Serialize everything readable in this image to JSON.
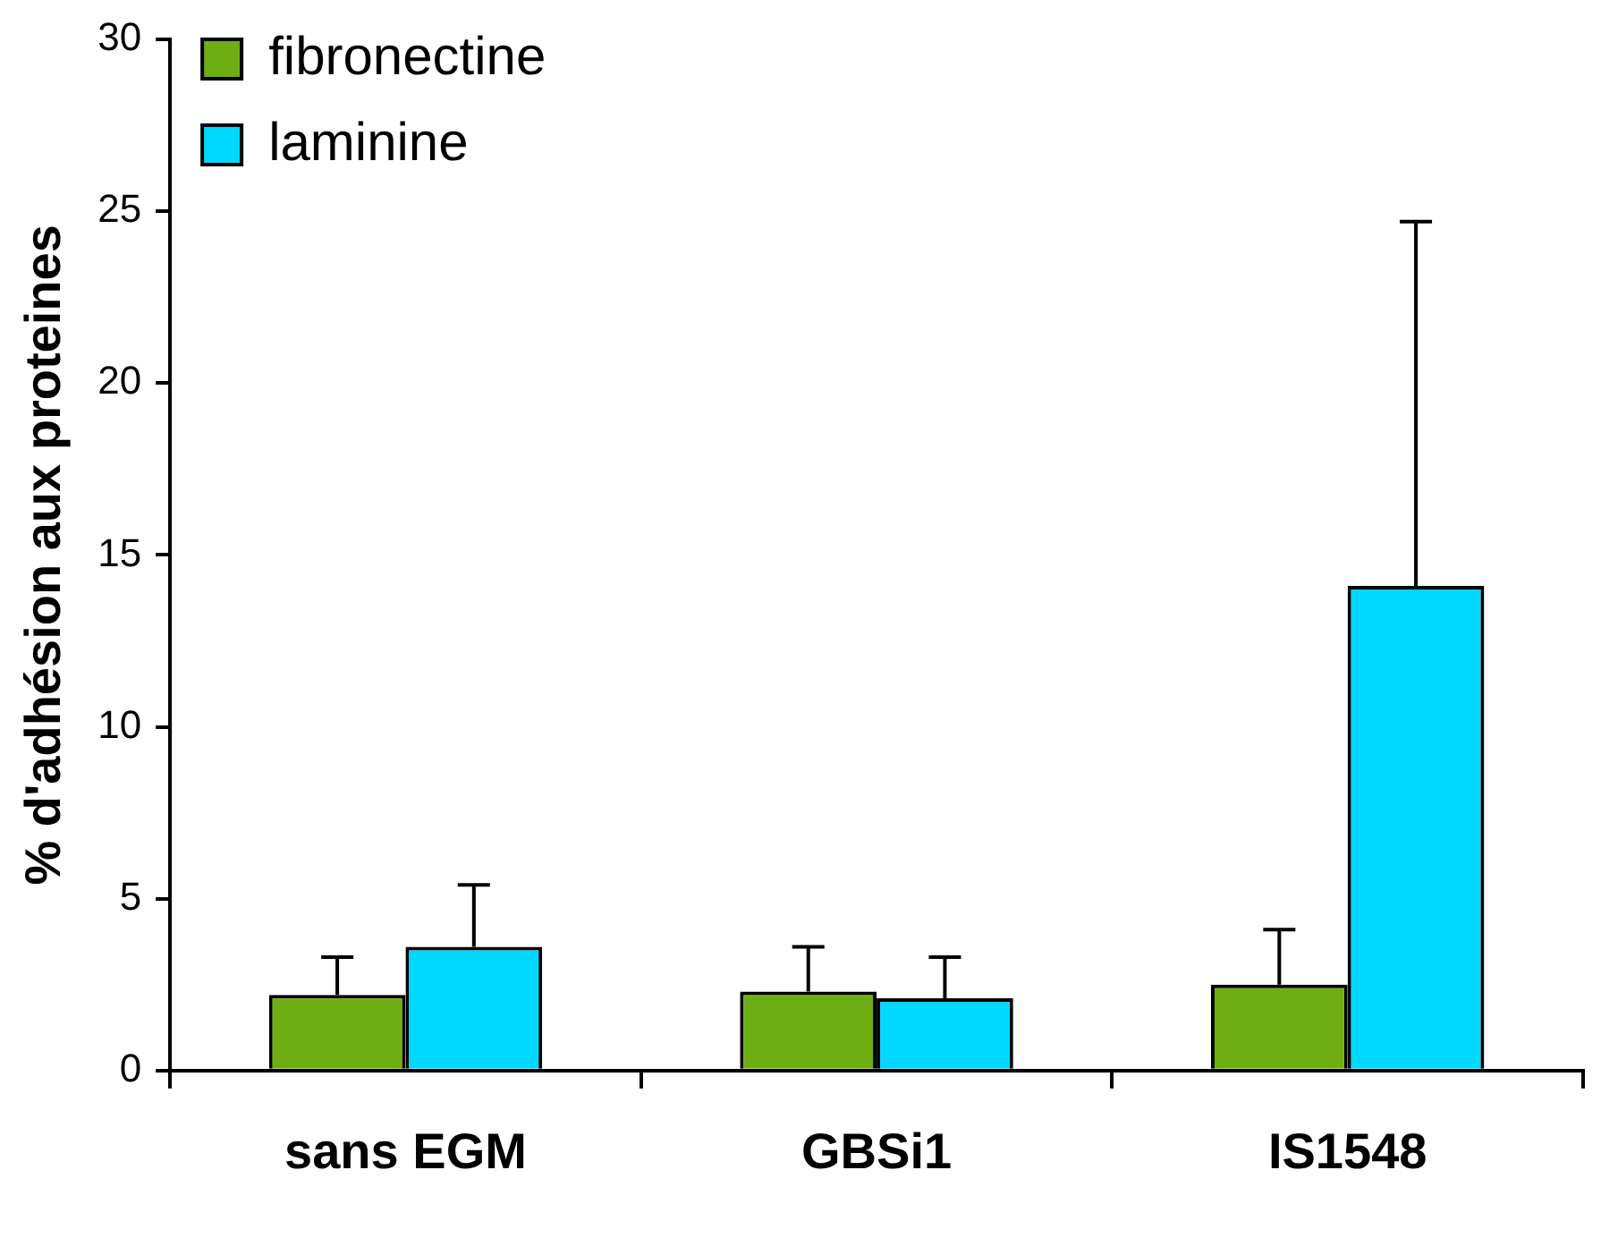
{
  "chart_data": {
    "type": "bar",
    "ylabel": "% d'adhésion aux proteines",
    "categories": [
      "sans EGM",
      "GBSi1",
      "IS1548"
    ],
    "series": [
      {
        "name": "fibronectine",
        "color": "#6fae12",
        "values": [
          2.2,
          2.3,
          2.5
        ],
        "errors": [
          [
            2.2,
            3.3
          ],
          [
            2.3,
            3.6
          ],
          [
            2.5,
            4.1
          ]
        ]
      },
      {
        "name": "laminine",
        "color": "#00d8ff",
        "values": [
          3.6,
          2.1,
          14.1
        ],
        "errors": [
          [
            3.6,
            5.4
          ],
          [
            2.1,
            3.3
          ],
          [
            14.1,
            24.7
          ]
        ]
      }
    ],
    "ylim": [
      0,
      30
    ],
    "yticks": [
      0,
      5,
      10,
      15,
      20,
      25,
      30
    ],
    "grid": false,
    "legend": "top left"
  }
}
